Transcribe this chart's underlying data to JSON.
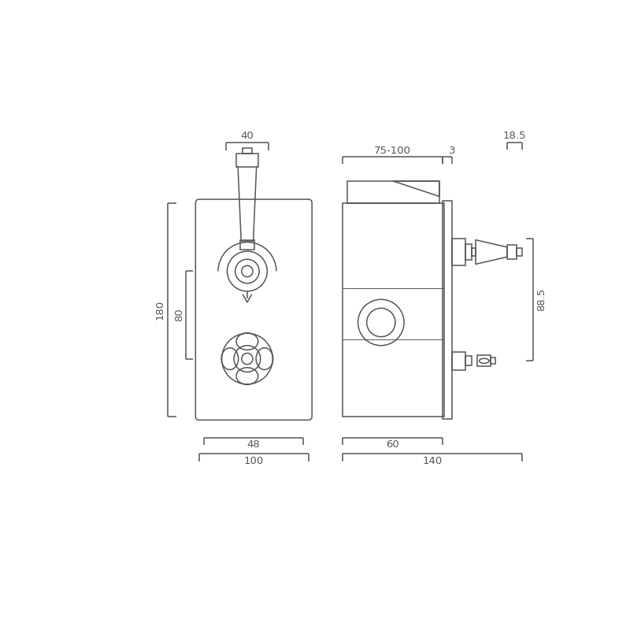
{
  "bg_color": "#ffffff",
  "line_color": "#555555",
  "lw": 1.1,
  "lw_thin": 0.7,
  "fig_size": [
    8.0,
    8.0
  ],
  "dpi": 100,
  "font_size": 9.5,
  "dims": {
    "d40": "40",
    "d180": "180",
    "d80": "80",
    "d48": "48",
    "d100": "100",
    "d75_100": "75-100",
    "d3": "3",
    "d18_5": "18.5",
    "d88_5": "88.5",
    "d60": "60",
    "d140": "140"
  }
}
